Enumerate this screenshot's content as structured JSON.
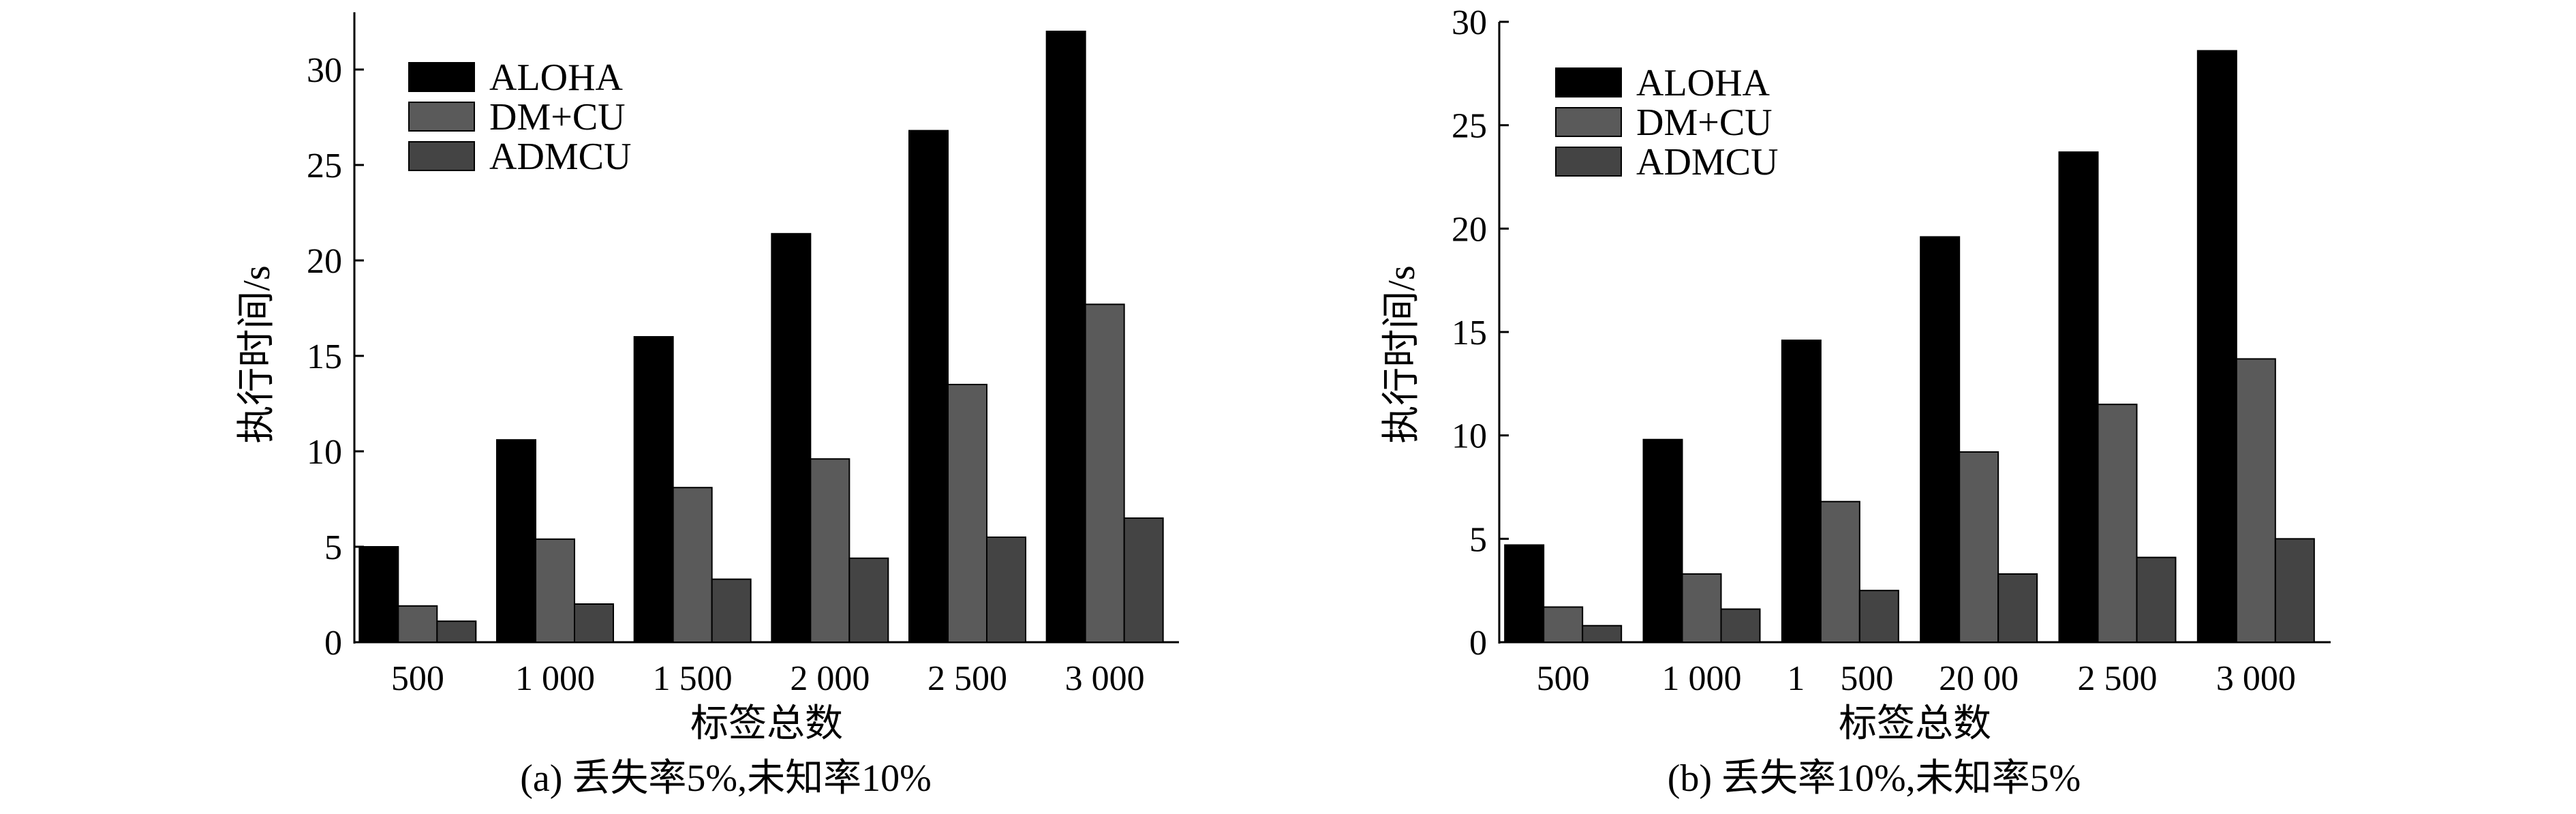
{
  "chart_data": [
    {
      "type": "bar",
      "caption": "(a) 丢失率5%,未知率10%",
      "xlabel": "标签总数",
      "ylabel": "执行时间/s",
      "categories": [
        "500",
        "1 000",
        "1 500",
        "2 000",
        "2 500",
        "3 000"
      ],
      "yticks": [
        "0",
        "5",
        "10",
        "15",
        "20",
        "25",
        "30"
      ],
      "ylim": [
        0,
        33
      ],
      "legend_position": "top-left",
      "grid": false,
      "series": [
        {
          "name": "ALOHA",
          "color": "#000000",
          "values": [
            5.0,
            10.6,
            16.0,
            21.4,
            26.8,
            32.0
          ]
        },
        {
          "name": "DM+CU",
          "color": "#5a5a5a",
          "values": [
            1.9,
            5.4,
            8.1,
            9.6,
            13.5,
            17.7
          ]
        },
        {
          "name": "ADMCU",
          "color": "#444444",
          "values": [
            1.1,
            2.0,
            3.3,
            4.4,
            5.5,
            6.5
          ]
        }
      ]
    },
    {
      "type": "bar",
      "caption": "(b) 丢失率10%,未知率5%",
      "xlabel": "标签总数",
      "ylabel": "执行时间/s",
      "categories": [
        "500",
        "1 000",
        "1　500",
        "20 00",
        "2 500",
        "3 000"
      ],
      "yticks": [
        "0",
        "5",
        "10",
        "15",
        "20",
        "25",
        "30"
      ],
      "ylim": [
        0,
        30
      ],
      "legend_position": "top-left",
      "grid": false,
      "series": [
        {
          "name": "ALOHA",
          "color": "#000000",
          "values": [
            4.7,
            9.8,
            14.6,
            19.6,
            23.7,
            28.6
          ]
        },
        {
          "name": "DM+CU",
          "color": "#5a5a5a",
          "values": [
            1.7,
            3.3,
            6.8,
            9.2,
            11.5,
            13.7
          ]
        },
        {
          "name": "ADMCU",
          "color": "#444444",
          "values": [
            0.8,
            1.6,
            2.5,
            3.3,
            4.1,
            5.0
          ]
        }
      ]
    }
  ]
}
